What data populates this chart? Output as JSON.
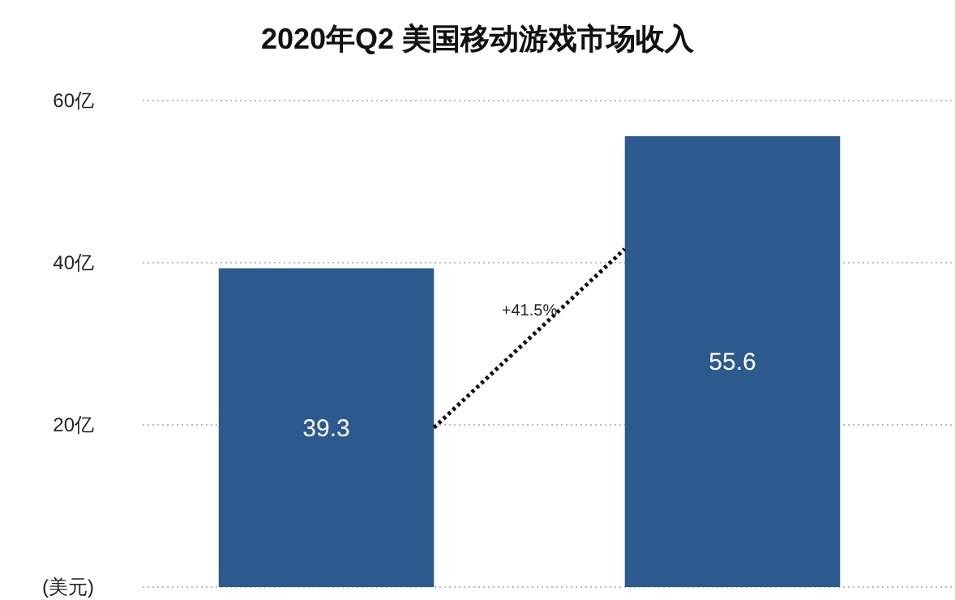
{
  "chart_data": {
    "type": "bar",
    "title": "2020年Q2 美国移动游戏市场收入",
    "categories": [
      null,
      null
    ],
    "values": [
      39.3,
      55.6
    ],
    "color": "#2d5a8e",
    "data_labels": true,
    "annotations": [
      "+41.5%"
    ],
    "ylim": [
      0,
      60
    ],
    "yticks": [
      {
        "value": 0,
        "label": "(美元)"
      },
      {
        "value": 20,
        "label": "20亿"
      },
      {
        "value": 40,
        "label": "40亿"
      },
      {
        "value": 60,
        "label": "60亿"
      }
    ],
    "grid": "y"
  }
}
